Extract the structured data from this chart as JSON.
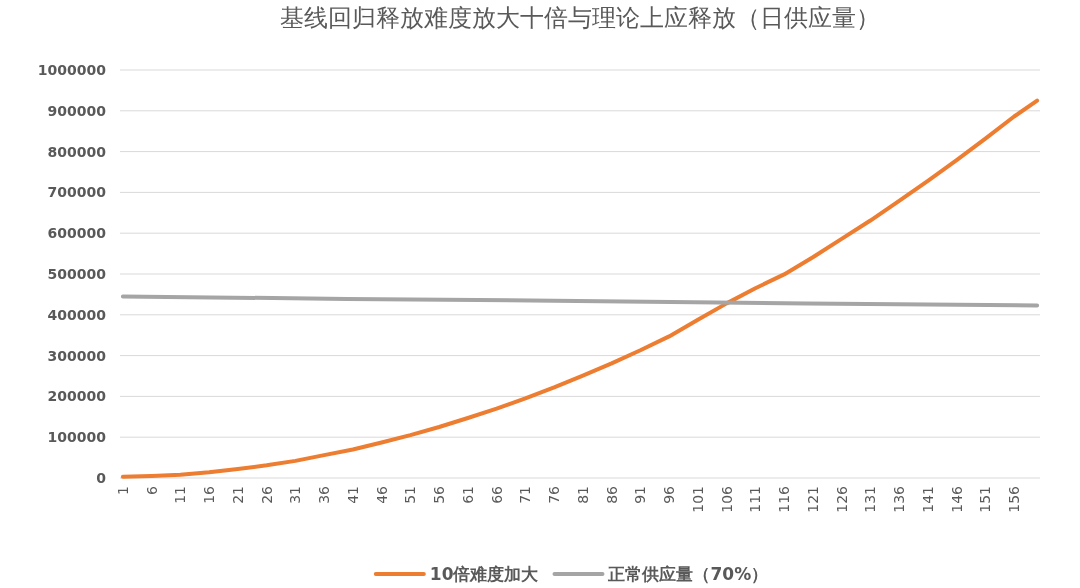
{
  "chart_data": {
    "type": "line",
    "title": "基线回归释放难度放大十倍与理论上应释放（日供应量）",
    "xlim": [
      0.5,
      160.5
    ],
    "xticks": [
      1,
      6,
      11,
      16,
      21,
      26,
      31,
      36,
      41,
      46,
      51,
      56,
      61,
      66,
      71,
      76,
      81,
      86,
      91,
      96,
      101,
      106,
      111,
      116,
      121,
      126,
      131,
      136,
      141,
      146,
      151,
      156
    ],
    "ylim": [
      0,
      1000000
    ],
    "yticks": [
      0,
      100000,
      200000,
      300000,
      400000,
      500000,
      600000,
      700000,
      800000,
      900000,
      1000000
    ],
    "grid": "y",
    "legend": "bottom",
    "marker": "none",
    "series": [
      {
        "name": "10倍难度加大",
        "color": "#ed7d31",
        "x": [
          1,
          6,
          11,
          16,
          21,
          26,
          31,
          36,
          41,
          46,
          51,
          56,
          61,
          66,
          71,
          76,
          81,
          86,
          91,
          96,
          101,
          106,
          111,
          116,
          121,
          126,
          131,
          136,
          141,
          146,
          151,
          156,
          160
        ],
        "values": [
          3000,
          5000,
          8000,
          14000,
          22000,
          31000,
          42000,
          56000,
          70000,
          87000,
          105000,
          125000,
          147000,
          170000,
          195000,
          222000,
          251000,
          281000,
          313000,
          347000,
          388000,
          428000,
          465000,
          499000,
          541000,
          586000,
          631000,
          679000,
          728000,
          779000,
          832000,
          886000,
          925000
        ]
      },
      {
        "name": "正常供应量（70%）",
        "color": "#a5a5a5",
        "x": [
          1,
          40,
          80,
          120,
          160
        ],
        "values": [
          445000,
          439000,
          434000,
          428000,
          423000
        ]
      }
    ]
  }
}
